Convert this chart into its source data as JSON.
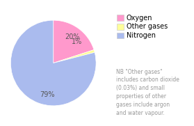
{
  "labels": [
    "Oxygen",
    "Other gases",
    "Nitrogen"
  ],
  "sizes": [
    20,
    1,
    79
  ],
  "colors": [
    "#FF99CC",
    "#FFFF99",
    "#AABBEE"
  ],
  "pct_labels": [
    "20%",
    "1%",
    "79%"
  ],
  "legend_labels": [
    "Oxygen",
    "Other gases",
    "Nitrogen"
  ],
  "note_text": "NB \"Other gases\"\nincludes carbon dioxide\n(0.03%) and small\nproperties of other\ngases include argon\nand water vapour.",
  "note_color": "#999999",
  "note_fontsize": 5.5,
  "legend_fontsize": 7,
  "pct_fontsize": 7,
  "background_color": "#FFFFFF",
  "startangle": 90,
  "pct_distance": 0.75
}
